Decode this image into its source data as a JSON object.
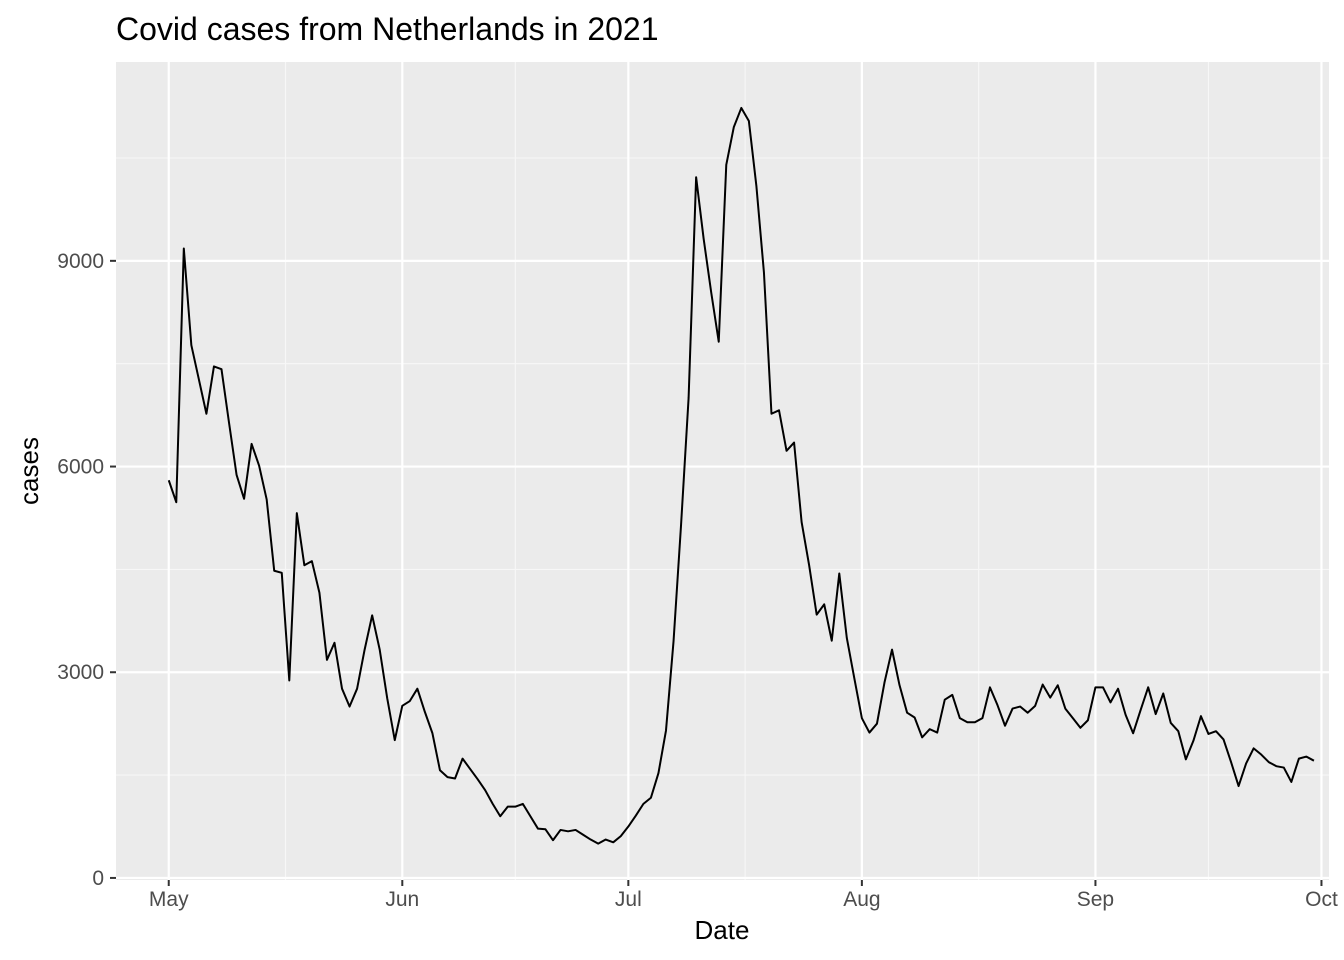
{
  "chart_data": {
    "type": "line",
    "title": "Covid cases from Netherlands in 2021",
    "xlabel": "Date",
    "ylabel": "cases",
    "xlim": [
      "2021-04-24",
      "2021-10-02"
    ],
    "ylim": [
      -30,
      11900
    ],
    "x_ticks": [
      {
        "date": "2021-05-01",
        "label": "May"
      },
      {
        "date": "2021-06-01",
        "label": "Jun"
      },
      {
        "date": "2021-07-01",
        "label": "Jul"
      },
      {
        "date": "2021-08-01",
        "label": "Aug"
      },
      {
        "date": "2021-09-01",
        "label": "Sep"
      },
      {
        "date": "2021-10-01",
        "label": "Oct"
      }
    ],
    "y_ticks": [
      {
        "value": 0,
        "label": "0"
      },
      {
        "value": 3000,
        "label": "3000"
      },
      {
        "value": 6000,
        "label": "6000"
      },
      {
        "value": 9000,
        "label": "9000"
      }
    ],
    "y_minor": [
      1500,
      4500,
      7500,
      10500
    ],
    "grid": true,
    "legend": "none",
    "colors": {
      "panel": "#ebebeb",
      "grid": "#ffffff",
      "line": "#000000",
      "tick_text": "#4d4d4d"
    },
    "series": [
      {
        "x": [
          "2021-05-01",
          "2021-05-02",
          "2021-05-03",
          "2021-05-04",
          "2021-05-05",
          "2021-05-06",
          "2021-05-07",
          "2021-05-08",
          "2021-05-09",
          "2021-05-10",
          "2021-05-11",
          "2021-05-12",
          "2021-05-13",
          "2021-05-14",
          "2021-05-15",
          "2021-05-16",
          "2021-05-17",
          "2021-05-18",
          "2021-05-19",
          "2021-05-20",
          "2021-05-21",
          "2021-05-22",
          "2021-05-23",
          "2021-05-24",
          "2021-05-25",
          "2021-05-26",
          "2021-05-27",
          "2021-05-28",
          "2021-05-29",
          "2021-05-30",
          "2021-05-31",
          "2021-06-01",
          "2021-06-02",
          "2021-06-03",
          "2021-06-04",
          "2021-06-05",
          "2021-06-06",
          "2021-06-07",
          "2021-06-08",
          "2021-06-09",
          "2021-06-10",
          "2021-06-11",
          "2021-06-12",
          "2021-06-13",
          "2021-06-14",
          "2021-06-15",
          "2021-06-16",
          "2021-06-17",
          "2021-06-18",
          "2021-06-19",
          "2021-06-20",
          "2021-06-21",
          "2021-06-22",
          "2021-06-23",
          "2021-06-24",
          "2021-06-25",
          "2021-06-26",
          "2021-06-27",
          "2021-06-28",
          "2021-06-29",
          "2021-06-30",
          "2021-07-01",
          "2021-07-02",
          "2021-07-03",
          "2021-07-04",
          "2021-07-05",
          "2021-07-06",
          "2021-07-07",
          "2021-07-08",
          "2021-07-09",
          "2021-07-10",
          "2021-07-11",
          "2021-07-12",
          "2021-07-13",
          "2021-07-14",
          "2021-07-15",
          "2021-07-16",
          "2021-07-17",
          "2021-07-18",
          "2021-07-19",
          "2021-07-20",
          "2021-07-21",
          "2021-07-22",
          "2021-07-23",
          "2021-07-24",
          "2021-07-25",
          "2021-07-26",
          "2021-07-27",
          "2021-07-28",
          "2021-07-29",
          "2021-07-30",
          "2021-07-31",
          "2021-08-01",
          "2021-08-02",
          "2021-08-03",
          "2021-08-04",
          "2021-08-05",
          "2021-08-06",
          "2021-08-07",
          "2021-08-08",
          "2021-08-09",
          "2021-08-10",
          "2021-08-11",
          "2021-08-12",
          "2021-08-13",
          "2021-08-14",
          "2021-08-15",
          "2021-08-16",
          "2021-08-17",
          "2021-08-18",
          "2021-08-19",
          "2021-08-20",
          "2021-08-21",
          "2021-08-22",
          "2021-08-23",
          "2021-08-24",
          "2021-08-25",
          "2021-08-26",
          "2021-08-27",
          "2021-08-28",
          "2021-08-29",
          "2021-08-30",
          "2021-08-31",
          "2021-09-01",
          "2021-09-02",
          "2021-09-03",
          "2021-09-04",
          "2021-09-05",
          "2021-09-06",
          "2021-09-07",
          "2021-09-08",
          "2021-09-09",
          "2021-09-10",
          "2021-09-11",
          "2021-09-12",
          "2021-09-13",
          "2021-09-14",
          "2021-09-15",
          "2021-09-16",
          "2021-09-17",
          "2021-09-18",
          "2021-09-19",
          "2021-09-20",
          "2021-09-21",
          "2021-09-22",
          "2021-09-23",
          "2021-09-24",
          "2021-09-25",
          "2021-09-26",
          "2021-09-27",
          "2021-09-28",
          "2021-09-29",
          "2021-09-30"
        ],
        "y": [
          5800,
          5480,
          9180,
          7770,
          7270,
          6770,
          7460,
          7420,
          6640,
          5880,
          5530,
          6330,
          6010,
          5520,
          4480,
          4450,
          2880,
          5320,
          4560,
          4620,
          4160,
          3180,
          3430,
          2760,
          2500,
          2760,
          3330,
          3830,
          3330,
          2620,
          2010,
          2510,
          2580,
          2760,
          2420,
          2110,
          1570,
          1470,
          1450,
          1740,
          1590,
          1440,
          1280,
          1080,
          900,
          1040,
          1040,
          1080,
          900,
          720,
          710,
          550,
          700,
          680,
          700,
          630,
          560,
          500,
          560,
          520,
          610,
          750,
          910,
          1080,
          1170,
          1530,
          2150,
          3450,
          5150,
          7000,
          10220,
          9320,
          8540,
          7820,
          10400,
          10950,
          11230,
          11040,
          10090,
          8830,
          6770,
          6820,
          6230,
          6350,
          5190,
          4560,
          3840,
          3990,
          3460,
          4440,
          3500,
          2910,
          2330,
          2120,
          2250,
          2850,
          3330,
          2810,
          2410,
          2340,
          2050,
          2170,
          2120,
          2600,
          2670,
          2330,
          2270,
          2270,
          2330,
          2780,
          2520,
          2220,
          2470,
          2500,
          2410,
          2510,
          2820,
          2630,
          2810,
          2470,
          2330,
          2190,
          2300,
          2780,
          2780,
          2560,
          2760,
          2380,
          2110,
          2450,
          2780,
          2390,
          2690,
          2260,
          2140,
          1730,
          2000,
          2360,
          2100,
          2140,
          2020,
          1690,
          1340,
          1670,
          1890,
          1800,
          1690,
          1630,
          1610,
          1400,
          1740,
          1770,
          1710
        ]
      }
    ]
  }
}
